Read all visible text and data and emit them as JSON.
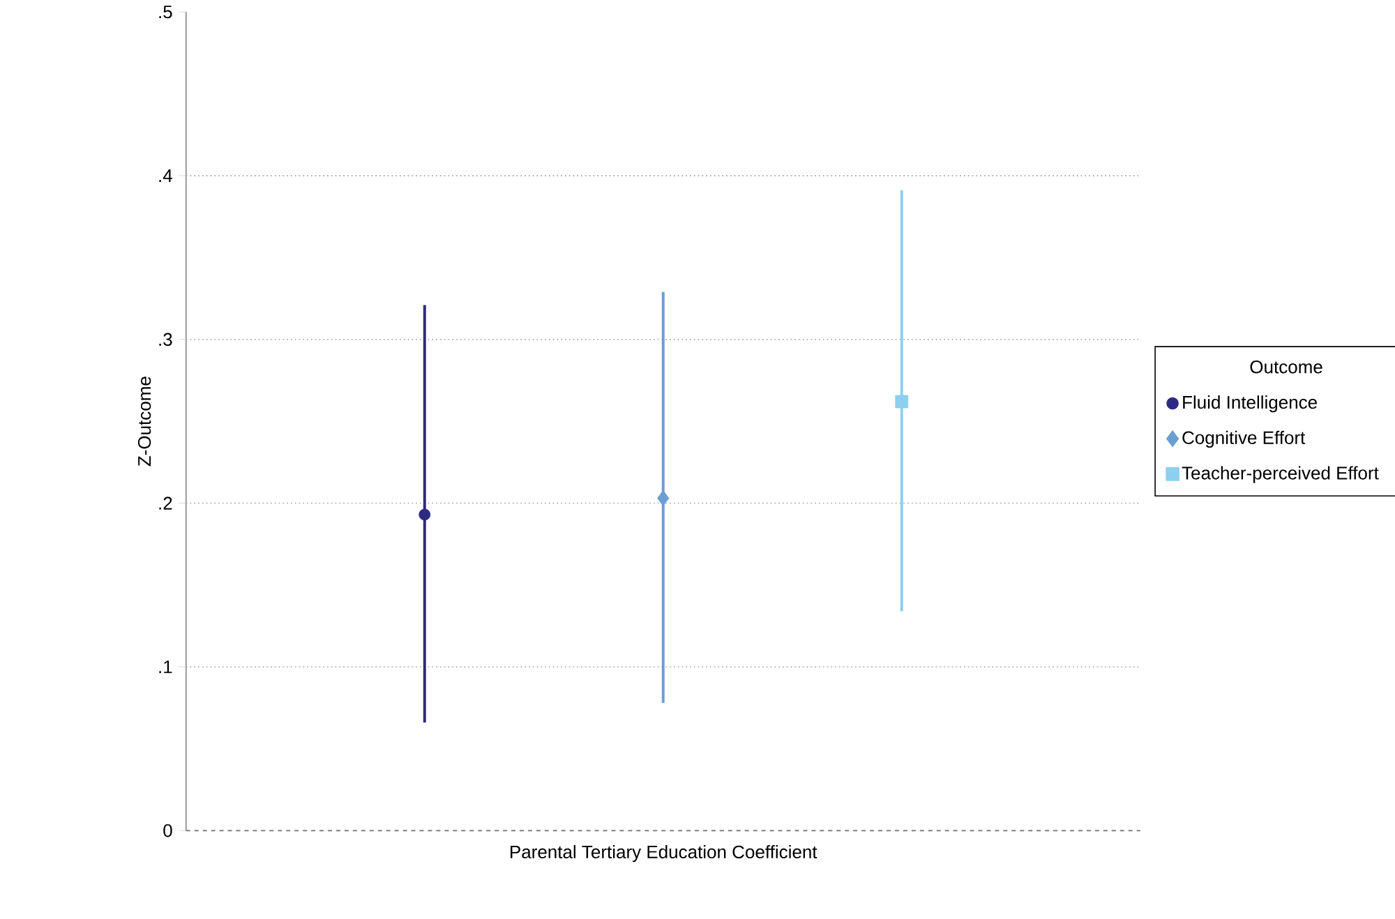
{
  "chart_data": {
    "type": "scatter",
    "xlabel": "Parental Tertiary Education Coefficient",
    "ylabel": "Z-Outcome",
    "legend_title": "Outcome",
    "legend": "right",
    "grid": "y",
    "categories": [
      null,
      null,
      null
    ],
    "ylim": [
      0,
      0.5
    ],
    "yticks": [
      {
        "value": 0,
        "label": "0"
      },
      {
        "value": 0.1,
        "label": ".1"
      },
      {
        "value": 0.2,
        "label": ".2"
      },
      {
        "value": 0.3,
        "label": ".3"
      },
      {
        "value": 0.4,
        "label": ".4"
      },
      {
        "value": 0.5,
        "label": ".5"
      }
    ],
    "ref_lines": [
      {
        "axis": "y",
        "value": 0,
        "line_style": "dashed",
        "color": "#808080"
      }
    ],
    "series": [
      {
        "name": "Fluid Intelligence",
        "color": "#2e2a84",
        "marker": "circle",
        "values": [
          0.193,
          null,
          null
        ],
        "errors": [
          [
            0.066,
            0.321
          ],
          null,
          null
        ]
      },
      {
        "name": "Cognitive Effort",
        "color": "#6a9fd4",
        "marker": "diamond",
        "values": [
          null,
          0.203,
          null
        ],
        "errors": [
          null,
          [
            0.078,
            0.329
          ],
          null
        ]
      },
      {
        "name": "Teacher-perceived Effort",
        "color": "#8ccfef",
        "marker": "square",
        "values": [
          null,
          null,
          0.262
        ],
        "errors": [
          null,
          null,
          [
            0.134,
            0.391
          ]
        ]
      }
    ]
  }
}
